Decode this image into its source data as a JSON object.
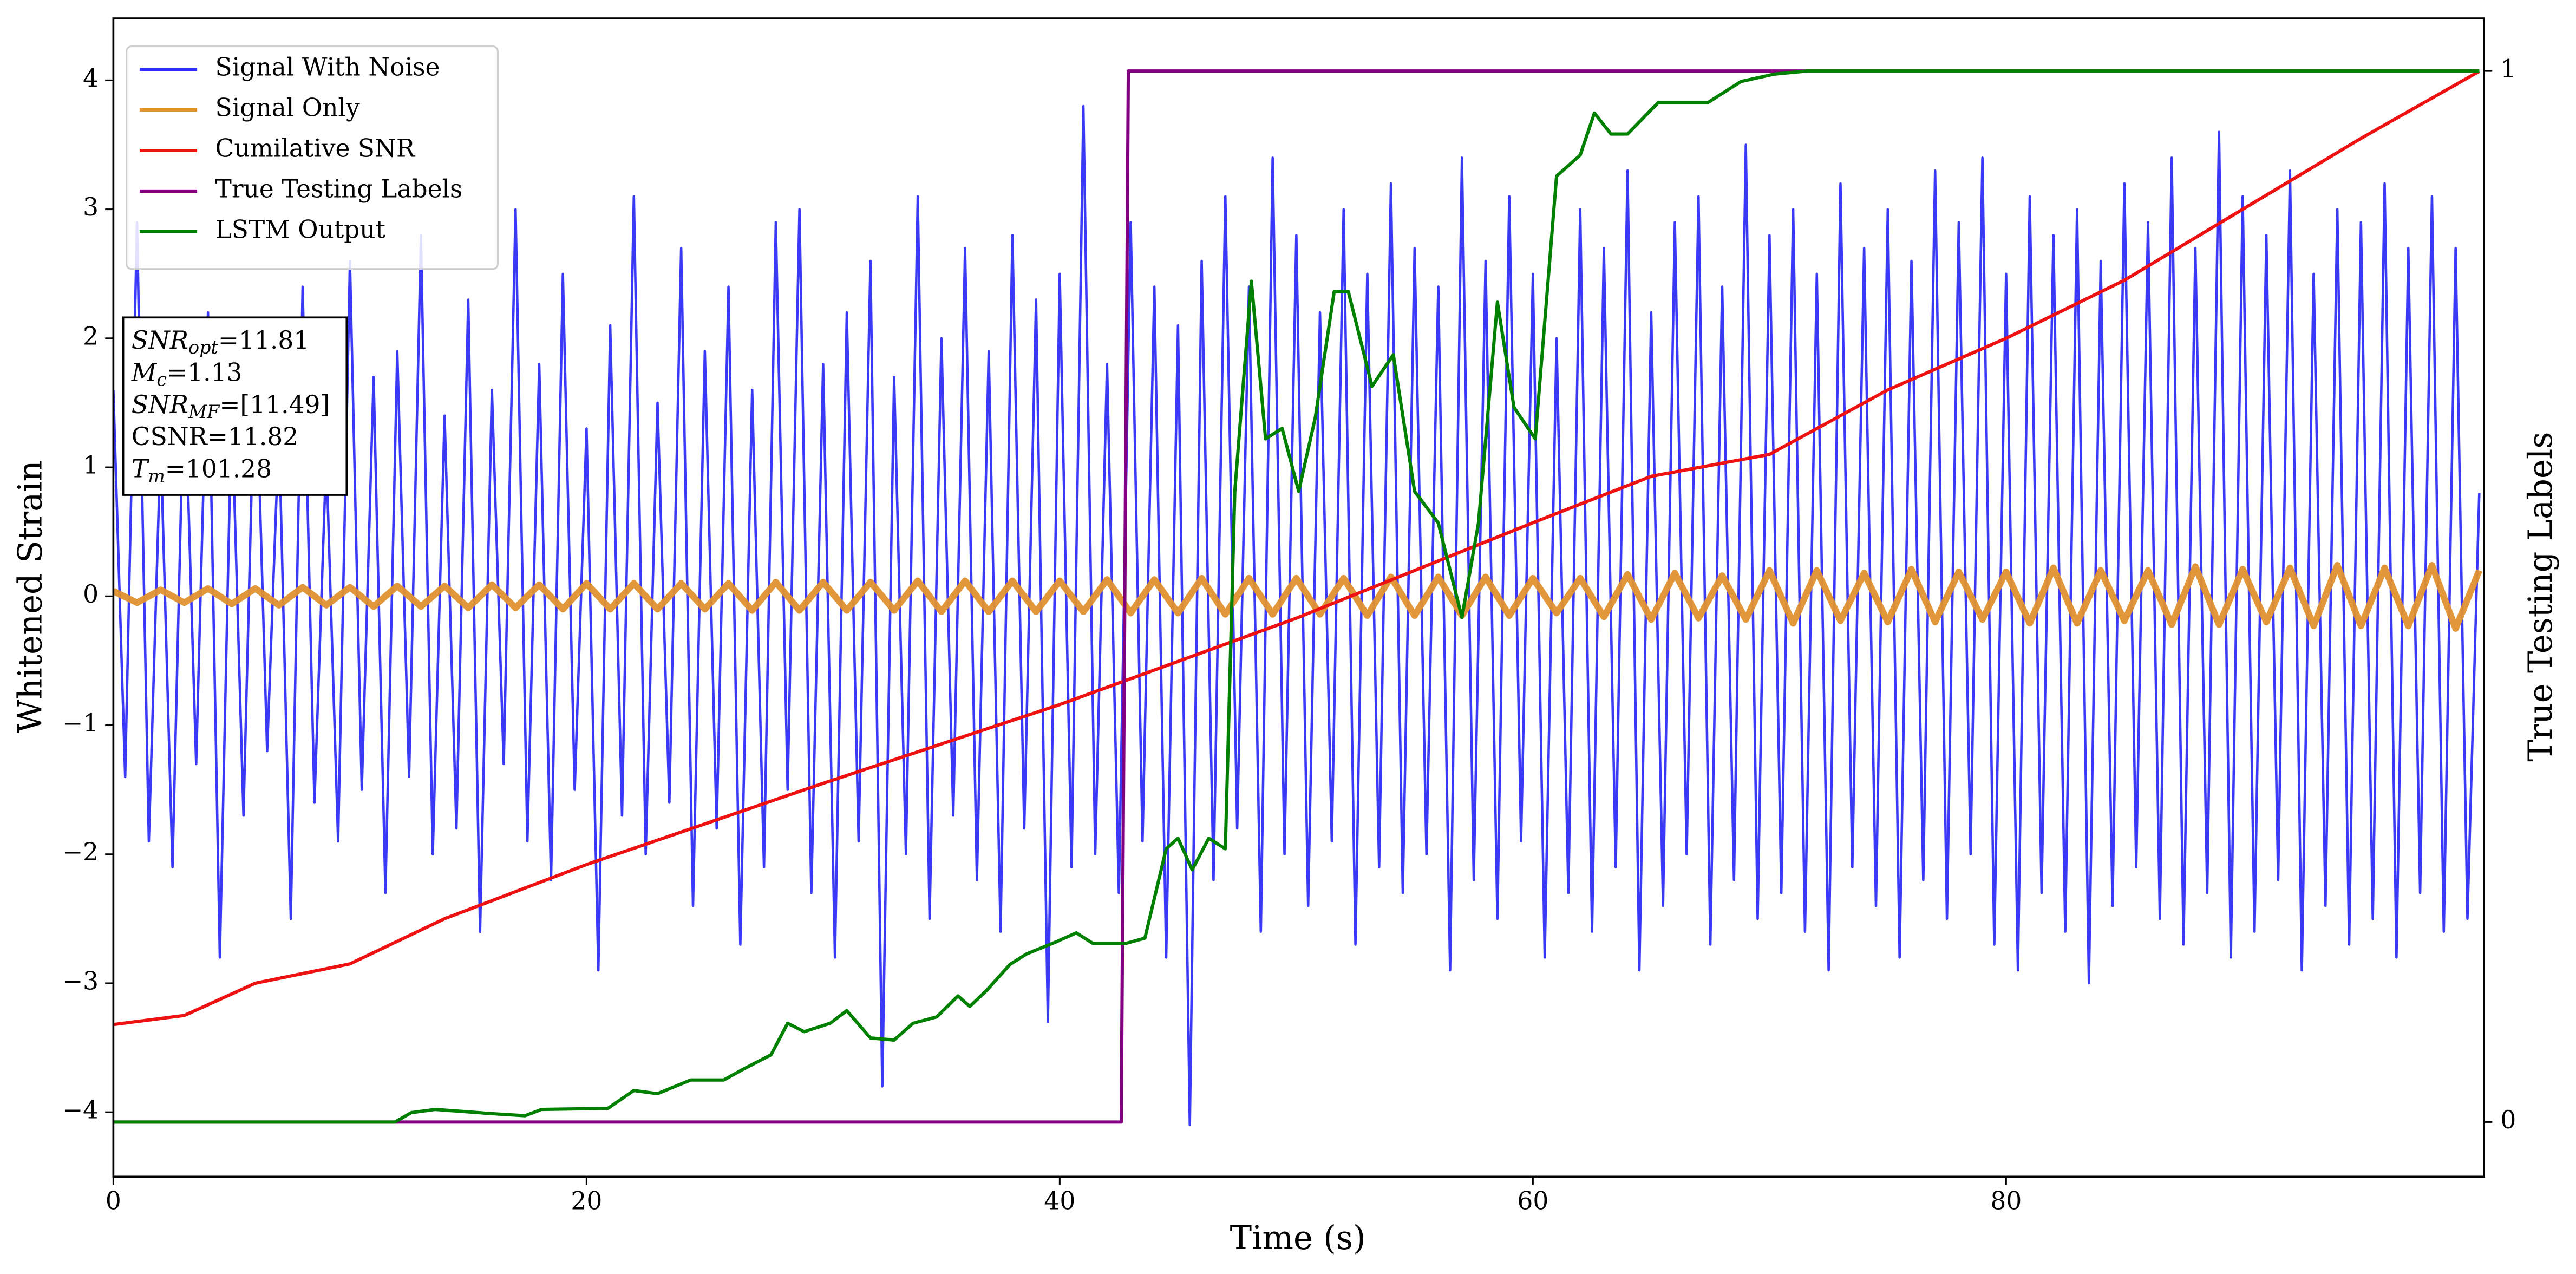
{
  "chart_data": {
    "type": "line",
    "xlabel": "Time (s)",
    "ylabel": "Whitened Strain",
    "y2label": "True Testing Labels",
    "xlim": [
      0,
      100.2
    ],
    "xticks": [
      0,
      20,
      40,
      60,
      80
    ],
    "ylim": [
      -4.5,
      4.48
    ],
    "yticks": [
      {
        "value": -4,
        "label": "−4"
      },
      {
        "value": -3,
        "label": "−3"
      },
      {
        "value": -2,
        "label": "−2"
      },
      {
        "value": -1,
        "label": "−1"
      },
      0,
      1,
      2,
      3,
      4
    ],
    "y2lim": [
      -0.052,
      1.05
    ],
    "y2ticks": [
      0,
      1
    ],
    "legend": "upper left",
    "grid": false,
    "annotations": [
      {
        "name": "SNR",
        "sub": "opt",
        "text": "=11.81"
      },
      {
        "name": "M",
        "sub": "c",
        "text": "=1.13"
      },
      {
        "name": "SNR",
        "sub": "MF",
        "text": "=[11.49]"
      },
      {
        "name": "CSNR",
        "text": "=11.82"
      },
      {
        "name": "T",
        "sub": "m",
        "text": "=101.28"
      }
    ],
    "series": [
      {
        "name": "Signal With Noise",
        "color": "#2f2ff5",
        "width": 1.5,
        "x": [
          0,
          0.5,
          1,
          1.5,
          2,
          2.5,
          3,
          3.5,
          4,
          4.5,
          5,
          5.5,
          6,
          6.5,
          7,
          7.5,
          8,
          8.5,
          9,
          9.5,
          10,
          10.5,
          11,
          11.5,
          12,
          12.5,
          13,
          13.5,
          14,
          14.5,
          15,
          15.5,
          16,
          16.5,
          17,
          17.5,
          18,
          18.5,
          19,
          19.5,
          20,
          20.5,
          21,
          21.5,
          22,
          22.5,
          23,
          23.5,
          24,
          24.5,
          25,
          25.5,
          26,
          26.5,
          27,
          27.5,
          28,
          28.5,
          29,
          29.5,
          30,
          30.5,
          31,
          31.5,
          32,
          32.5,
          33,
          33.5,
          34,
          34.5,
          35,
          35.5,
          36,
          36.5,
          37,
          37.5,
          38,
          38.5,
          39,
          39.5,
          40,
          40.5,
          41,
          41.5,
          42,
          42.5,
          43,
          43.5,
          44,
          44.5,
          45,
          45.5,
          46,
          46.5,
          47,
          47.5,
          48,
          48.5,
          49,
          49.5,
          50,
          50.5,
          51,
          51.5,
          52,
          52.5,
          53,
          53.5,
          54,
          54.5,
          55,
          55.5,
          56,
          56.5,
          57,
          57.5,
          58,
          58.5,
          59,
          59.5,
          60,
          60.5,
          61,
          61.5,
          62,
          62.5,
          63,
          63.5,
          64,
          64.5,
          65,
          65.5,
          66,
          66.5,
          67,
          67.5,
          68,
          68.5,
          69,
          69.5,
          70,
          70.5,
          71,
          71.5,
          72,
          72.5,
          73,
          73.5,
          74,
          74.5,
          75,
          75.5,
          76,
          76.5,
          77,
          77.5,
          78,
          78.5,
          79,
          79.5,
          80,
          80.5,
          81,
          81.5,
          82,
          82.5,
          83,
          83.5,
          84,
          84.5,
          85,
          85.5,
          86,
          86.5,
          87,
          87.5,
          88,
          88.5,
          89,
          89.5,
          90,
          90.5,
          91,
          91.5,
          92,
          92.5,
          93,
          93.5,
          94,
          94.5,
          95,
          95.5,
          96,
          96.5,
          97,
          97.5,
          98,
          98.5,
          99,
          99.5,
          100
        ],
        "values": [
          1.6,
          -1.4,
          2.9,
          -1.9,
          1.2,
          -2.1,
          1.8,
          -1.3,
          2.2,
          -2.8,
          1.5,
          -1.7,
          2.0,
          -1.2,
          1.3,
          -2.5,
          2.4,
          -1.6,
          1.1,
          -1.9,
          2.6,
          -1.5,
          1.7,
          -2.3,
          1.9,
          -1.4,
          2.8,
          -2.0,
          1.4,
          -1.8,
          2.3,
          -2.6,
          1.6,
          -1.3,
          3.0,
          -1.9,
          1.8,
          -2.2,
          2.5,
          -1.5,
          1.3,
          -2.9,
          2.1,
          -1.7,
          3.1,
          -2.0,
          1.5,
          -1.6,
          2.7,
          -2.4,
          1.9,
          -1.8,
          2.4,
          -2.7,
          1.6,
          -2.1,
          2.9,
          -1.5,
          3.0,
          -2.3,
          1.8,
          -2.8,
          2.2,
          -1.9,
          2.6,
          -3.8,
          1.7,
          -2.0,
          3.1,
          -2.5,
          2.0,
          -1.7,
          2.7,
          -2.2,
          1.9,
          -2.6,
          2.8,
          -1.8,
          2.3,
          -3.3,
          2.5,
          -2.1,
          3.8,
          -2.0,
          1.8,
          -2.3,
          2.9,
          -1.9,
          2.4,
          -2.8,
          2.1,
          -4.1,
          2.6,
          -2.2,
          3.1,
          -1.8,
          2.4,
          -2.6,
          3.4,
          -2.0,
          2.8,
          -2.4,
          2.2,
          -1.9,
          3.0,
          -2.7,
          2.5,
          -2.1,
          3.2,
          -2.3,
          2.7,
          -2.0,
          2.4,
          -2.9,
          3.4,
          -2.2,
          2.6,
          -2.5,
          3.1,
          -1.9,
          2.5,
          -2.8,
          2.0,
          -2.3,
          3.0,
          -2.6,
          2.7,
          -2.1,
          3.3,
          -2.9,
          2.2,
          -2.4,
          2.9,
          -2.0,
          3.1,
          -2.7,
          2.4,
          -2.2,
          3.5,
          -2.5,
          2.8,
          -2.3,
          3.0,
          -2.6,
          2.5,
          -2.9,
          3.2,
          -2.1,
          2.7,
          -2.4,
          3.0,
          -2.8,
          2.6,
          -2.2,
          3.3,
          -2.5,
          2.9,
          -2.0,
          3.4,
          -2.7,
          2.5,
          -2.9,
          3.1,
          -2.3,
          2.8,
          -2.6,
          3.0,
          -3.0,
          2.6,
          -2.4,
          3.2,
          -2.1,
          2.9,
          -2.5,
          3.4,
          -2.7,
          2.7,
          -2.3,
          3.6,
          -2.8,
          3.1,
          -2.6,
          2.8,
          -2.2,
          3.3,
          -2.9,
          2.5,
          -2.4,
          3.0,
          -2.7,
          2.9,
          -2.5,
          3.2,
          -2.8,
          2.7,
          -2.3,
          3.1,
          -2.6,
          2.7,
          -2.5,
          0.8
        ]
      },
      {
        "name": "Signal Only",
        "color": "#e0912f",
        "width": 4,
        "x": [
          0,
          1,
          2,
          3,
          4,
          5,
          6,
          7,
          8,
          9,
          10,
          11,
          12,
          13,
          14,
          15,
          16,
          17,
          18,
          19,
          20,
          21,
          22,
          23,
          24,
          25,
          26,
          27,
          28,
          29,
          30,
          31,
          32,
          33,
          34,
          35,
          36,
          37,
          38,
          39,
          40,
          41,
          42,
          43,
          44,
          45,
          46,
          47,
          48,
          49,
          50,
          51,
          52,
          53,
          54,
          55,
          56,
          57,
          58,
          59,
          60,
          61,
          62,
          63,
          64,
          65,
          66,
          67,
          68,
          69,
          70,
          71,
          72,
          73,
          74,
          75,
          76,
          77,
          78,
          79,
          80,
          81,
          82,
          83,
          84,
          85,
          86,
          87,
          88,
          89,
          90,
          91,
          92,
          93,
          94,
          95,
          96,
          97,
          98,
          99,
          100
        ],
        "values": [
          0.04,
          -0.05,
          0.05,
          -0.05,
          0.06,
          -0.06,
          0.06,
          -0.07,
          0.07,
          -0.07,
          0.07,
          -0.08,
          0.08,
          -0.08,
          0.08,
          -0.09,
          0.09,
          -0.09,
          0.09,
          -0.1,
          0.1,
          -0.1,
          0.1,
          -0.1,
          0.1,
          -0.1,
          0.1,
          -0.11,
          0.11,
          -0.11,
          0.11,
          -0.11,
          0.11,
          -0.11,
          0.12,
          -0.12,
          0.12,
          -0.12,
          0.12,
          -0.12,
          0.12,
          -0.12,
          0.13,
          -0.13,
          0.13,
          -0.13,
          0.14,
          -0.14,
          0.14,
          -0.14,
          0.14,
          -0.14,
          0.14,
          -0.15,
          0.15,
          -0.15,
          0.15,
          -0.15,
          0.15,
          -0.15,
          0.14,
          -0.13,
          0.14,
          -0.16,
          0.17,
          -0.18,
          0.18,
          -0.17,
          0.16,
          -0.18,
          0.2,
          -0.21,
          0.2,
          -0.19,
          0.18,
          -0.2,
          0.21,
          -0.2,
          0.19,
          -0.18,
          0.19,
          -0.21,
          0.22,
          -0.21,
          0.2,
          -0.19,
          0.2,
          -0.22,
          0.23,
          -0.22,
          0.21,
          -0.2,
          0.22,
          -0.23,
          0.24,
          -0.23,
          0.22,
          -0.23,
          0.24,
          -0.25,
          0.2
        ]
      },
      {
        "name": "Cumilative SNR",
        "color": "#ee1111",
        "width": 2,
        "x": [
          0,
          3,
          6,
          10,
          14,
          20,
          30,
          40,
          50,
          55,
          60,
          65,
          70,
          75,
          80,
          85,
          90,
          95,
          100
        ],
        "values": [
          -3.32,
          -3.25,
          -3.0,
          -2.85,
          -2.5,
          -2.08,
          -1.45,
          -0.84,
          -0.17,
          0.2,
          0.57,
          0.93,
          1.1,
          1.6,
          2.0,
          2.45,
          3.0,
          3.55,
          4.07
        ]
      },
      {
        "name": "True Testing Labels",
        "color": "#800080",
        "width": 2,
        "axis": "y2",
        "x": [
          0,
          42.6,
          42.9,
          100
        ],
        "values": [
          0,
          0,
          1,
          1
        ]
      },
      {
        "name": "LSTM Output",
        "color": "#008000",
        "width": 2,
        "axis": "y2",
        "x": [
          0,
          11.9,
          12.6,
          13.6,
          16,
          17.4,
          18.1,
          20.9,
          22,
          23,
          24.4,
          25.8,
          26.6,
          27.8,
          28.5,
          29.2,
          30.3,
          31,
          32,
          33,
          33.8,
          34.8,
          35.7,
          36.2,
          36.9,
          37.9,
          38.6,
          39.7,
          40.7,
          41.4,
          42.8,
          43.6,
          44.5,
          45,
          45.6,
          46.3,
          47,
          47.4,
          48.1,
          48.7,
          49.4,
          50.1,
          50.8,
          51.6,
          52.2,
          53.2,
          54.1,
          55,
          56,
          57,
          57.7,
          58.5,
          59.2,
          60.1,
          61,
          62,
          62.6,
          63.3,
          64,
          65.3,
          67.4,
          68.8,
          70.2,
          71.6,
          78,
          100
        ],
        "values": [
          0,
          0,
          0.009,
          0.012,
          0.008,
          0.006,
          0.012,
          0.013,
          0.03,
          0.027,
          0.04,
          0.04,
          0.05,
          0.064,
          0.094,
          0.086,
          0.094,
          0.106,
          0.08,
          0.078,
          0.094,
          0.1,
          0.12,
          0.11,
          0.125,
          0.15,
          0.16,
          0.17,
          0.18,
          0.17,
          0.17,
          0.175,
          0.26,
          0.27,
          0.24,
          0.27,
          0.26,
          0.6,
          0.8,
          0.65,
          0.66,
          0.6,
          0.67,
          0.79,
          0.79,
          0.7,
          0.73,
          0.6,
          0.57,
          0.48,
          0.57,
          0.78,
          0.68,
          0.65,
          0.9,
          0.92,
          0.96,
          0.94,
          0.94,
          0.97,
          0.97,
          0.99,
          0.997,
          1.0,
          1.0,
          1.0
        ]
      }
    ]
  }
}
